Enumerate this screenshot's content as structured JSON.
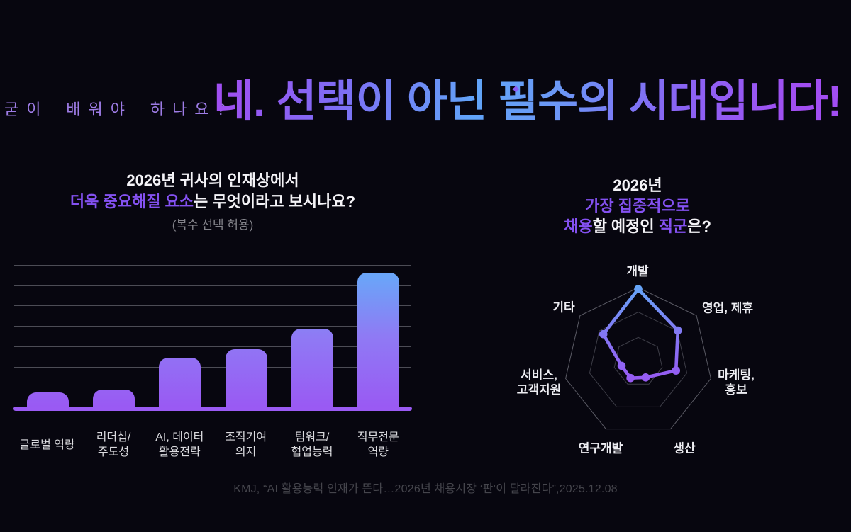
{
  "header": {
    "kicker": "굳이 배워야 하나요?",
    "headline": "네. 선택이 아닌 필수의 시대입니다!",
    "sparkle_icon": "✦"
  },
  "bar_section": {
    "title_line1": "2026년 귀사의 인재상에서",
    "title_line2_accent": "더욱 중요해질 요소",
    "title_line2_rest": "는 무엇이라고 보시나요?",
    "subtitle": "(복수 선택 허용)"
  },
  "radar_section": {
    "title_line1": "2026년",
    "title_line2": "가장 집중적으로",
    "title_line3_accent1": "채용",
    "title_line3_mid": "할 예정인 ",
    "title_line3_accent2": "직군",
    "title_line3_rest": "은?"
  },
  "footer": {
    "citation": "KMJ, “AI 활용능력 인재가 뜬다…2026년 채용시장 ‘판’이 달라진다”,2025.12.08"
  },
  "colors": {
    "background": "#07060f",
    "accent_purple": "#8451f1",
    "kicker_purple": "#9e7ce6",
    "headline_gradient": [
      "#a04ff2",
      "#61a4f8",
      "#a24ef2"
    ],
    "bar_gradient_top": "#6aa5f8",
    "bar_gradient_bottom": "#9a58f3",
    "axis_line": "#9a5af3",
    "gridline": "#4c4c55",
    "radar_ring_outer": "#5a5a64",
    "radar_ring_inner": "#3e3e48",
    "radar_line_top": "#64a7f8",
    "radar_line_bottom": "#9b54f3",
    "title_white": "#f4f3f7",
    "muted_gray": "#83838a",
    "citation_gray": "#45454c"
  },
  "chart_data": [
    {
      "type": "bar",
      "title": "2026년 귀사의 인재상에서 더욱 중요해질 요소는 무엇이라고 보시나요?",
      "subtitle": "(복수 선택 허용)",
      "categories": [
        "글로벌 역량",
        "리더십/주도성",
        "AI, 데이터 활용전략",
        "조직기여 의지",
        "팀워크/협업능력",
        "직무전문 역량"
      ],
      "category_lines": [
        [
          "글로벌 역량"
        ],
        [
          "리더십/",
          "주도성"
        ],
        [
          "AI, 데이터",
          "활용전략"
        ],
        [
          "조직기여",
          "의지"
        ],
        [
          "팀워크/",
          "협업능력"
        ],
        [
          "직무전문",
          "역량"
        ]
      ],
      "values": [
        10,
        12,
        34,
        40,
        54,
        93
      ],
      "value_unit": "relative height, % of axis max (no numeric axis labels shown)",
      "xlabel": "",
      "ylabel": "",
      "gridlines": 7,
      "grid": true,
      "legend": "none"
    },
    {
      "type": "radar",
      "title": "2026년 가장 집중적으로 채용할 예정인 직군은?",
      "categories": [
        "개발",
        "영업, 제휴",
        "마케팅, 홍보",
        "생산",
        "연구개발",
        "서비스, 고객지원",
        "기타"
      ],
      "category_lines": [
        [
          "개발"
        ],
        [
          "영업, 제휴"
        ],
        [
          "마케팅,",
          "홍보"
        ],
        [
          "생산"
        ],
        [
          "연구개발"
        ],
        [
          "서비스,",
          "고객지원"
        ],
        [
          "기타"
        ]
      ],
      "values": [
        0.98,
        0.68,
        0.52,
        0.23,
        0.24,
        0.23,
        0.6
      ],
      "value_range": [
        0,
        1
      ],
      "rings": [
        0.33,
        0.67,
        1.0
      ],
      "grid": true,
      "legend": "none"
    }
  ]
}
